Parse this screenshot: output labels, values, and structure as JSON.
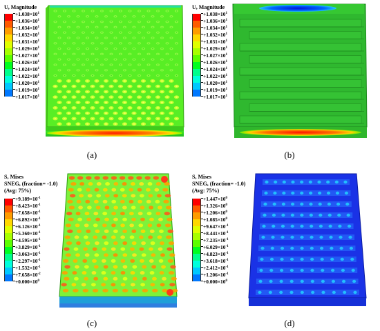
{
  "panels": [
    {
      "id": "a",
      "caption": "(a)",
      "title_lines": [
        "U, Magnitude"
      ],
      "legend_colors": [
        "#ff0000",
        "#ff5a00",
        "#ff9c00",
        "#ffd800",
        "#e0ff00",
        "#a8ff00",
        "#5cff00",
        "#00ff20",
        "#00ff8c",
        "#00ffdc",
        "#00c8ff",
        "#0078ff",
        "#0000ff"
      ],
      "legend_labels": [
        {
          "m": "+1.038",
          "e": "1"
        },
        {
          "m": "+1.036",
          "e": "1"
        },
        {
          "m": "+1.034",
          "e": "1"
        },
        {
          "m": "+1.032",
          "e": "1"
        },
        {
          "m": "+1.031",
          "e": "1"
        },
        {
          "m": "+1.029",
          "e": "1"
        },
        {
          "m": "+1.027",
          "e": "1"
        },
        {
          "m": "+1.026",
          "e": "1"
        },
        {
          "m": "+1.024",
          "e": "1"
        },
        {
          "m": "+1.022",
          "e": "1"
        },
        {
          "m": "+1.020",
          "e": "1"
        },
        {
          "m": "+1.019",
          "e": "1"
        },
        {
          "m": "+1.017",
          "e": "1"
        }
      ]
    },
    {
      "id": "b",
      "caption": "(b)",
      "title_lines": [
        "U, Magnitude"
      ],
      "legend_colors": [
        "#ff0000",
        "#ff5a00",
        "#ff9c00",
        "#ffd800",
        "#e0ff00",
        "#a8ff00",
        "#5cff00",
        "#00ff20",
        "#00ff8c",
        "#00ffdc",
        "#00c8ff",
        "#0078ff",
        "#0000ff"
      ],
      "legend_labels": [
        {
          "m": "+1.038",
          "e": "1"
        },
        {
          "m": "+1.036",
          "e": "1"
        },
        {
          "m": "+1.034",
          "e": "1"
        },
        {
          "m": "+1.032",
          "e": "1"
        },
        {
          "m": "+1.031",
          "e": "1"
        },
        {
          "m": "+1.029",
          "e": "1"
        },
        {
          "m": "+1.027",
          "e": "1"
        },
        {
          "m": "+1.026",
          "e": "1"
        },
        {
          "m": "+1.024",
          "e": "1"
        },
        {
          "m": "+1.022",
          "e": "1"
        },
        {
          "m": "+1.020",
          "e": "1"
        },
        {
          "m": "+1.019",
          "e": "1"
        },
        {
          "m": "+1.017",
          "e": "1"
        }
      ]
    },
    {
      "id": "c",
      "caption": "(c)",
      "title_lines": [
        "S, Mises",
        "SNEG, (fraction= -1.0)",
        "(Avg: 75%)"
      ],
      "legend_colors": [
        "#ff0000",
        "#ff5a00",
        "#ff9c00",
        "#ffd800",
        "#e0ff00",
        "#a8ff00",
        "#5cff00",
        "#00ff20",
        "#00ff8c",
        "#00ffdc",
        "#00c8ff",
        "#0078ff",
        "#0000ff"
      ],
      "legend_labels": [
        {
          "m": "+9.189",
          "e": "-1"
        },
        {
          "m": "+8.423",
          "e": "-1"
        },
        {
          "m": "+7.658",
          "e": "-1"
        },
        {
          "m": "+6.892",
          "e": "-1"
        },
        {
          "m": "+6.126",
          "e": "-1"
        },
        {
          "m": "+5.360",
          "e": "-1"
        },
        {
          "m": "+4.595",
          "e": "-1"
        },
        {
          "m": "+3.829",
          "e": "-1"
        },
        {
          "m": "+3.063",
          "e": "-1"
        },
        {
          "m": "+2.297",
          "e": "-1"
        },
        {
          "m": "+1.532",
          "e": "-1"
        },
        {
          "m": "+7.658",
          "e": "-2"
        },
        {
          "m": "+0.000",
          "e": "0"
        }
      ]
    },
    {
      "id": "d",
      "caption": "(d)",
      "title_lines": [
        "S, Mises",
        "SNEG, (fraction= -1.0)",
        "(Avg: 75%)"
      ],
      "legend_colors": [
        "#ff0000",
        "#ff5a00",
        "#ff9c00",
        "#ffd800",
        "#e0ff00",
        "#a8ff00",
        "#5cff00",
        "#00ff20",
        "#00ff8c",
        "#00ffdc",
        "#00c8ff",
        "#0078ff",
        "#0000ff"
      ],
      "legend_labels": [
        {
          "m": "+1.447",
          "e": "0"
        },
        {
          "m": "+1.326",
          "e": "0"
        },
        {
          "m": "+1.206",
          "e": "0"
        },
        {
          "m": "+1.085",
          "e": "0"
        },
        {
          "m": "+9.647",
          "e": "-1"
        },
        {
          "m": "+8.441",
          "e": "-1"
        },
        {
          "m": "+7.235",
          "e": "-1"
        },
        {
          "m": "+6.029",
          "e": "-1"
        },
        {
          "m": "+4.823",
          "e": "-1"
        },
        {
          "m": "+3.618",
          "e": "-1"
        },
        {
          "m": "+2.412",
          "e": "-1"
        },
        {
          "m": "+1.206",
          "e": "-1"
        },
        {
          "m": "+0.000",
          "e": "0"
        }
      ]
    }
  ]
}
